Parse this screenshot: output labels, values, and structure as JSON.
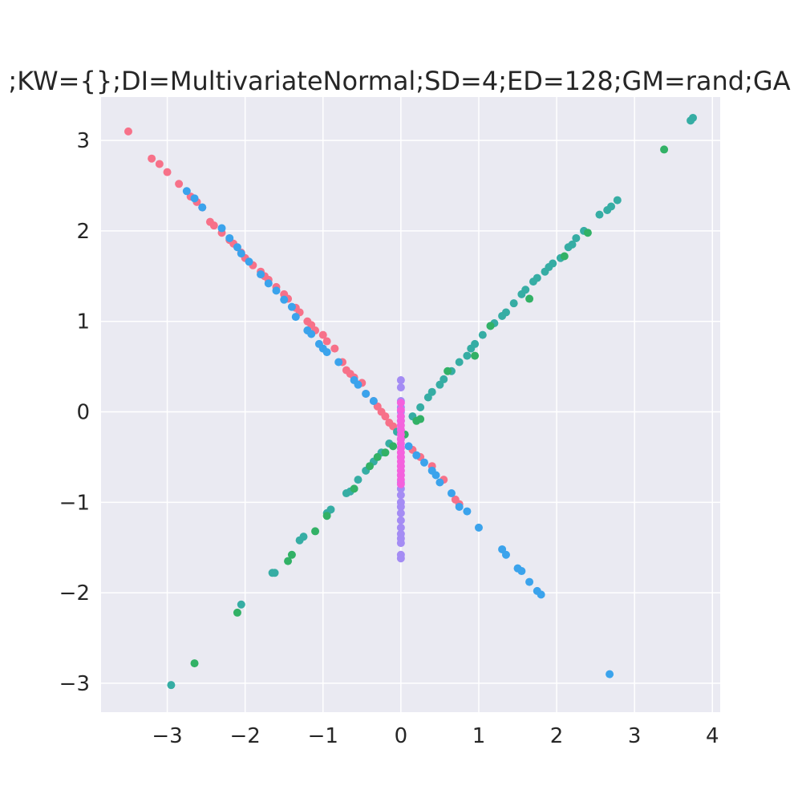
{
  "chart_data": {
    "type": "scatter",
    "title": ";KW={};DI=MultivariateNormal;SD=4;ED=128;GM=rand;GA",
    "xlabel": "",
    "ylabel": "",
    "xlim": [
      -3.85,
      4.1
    ],
    "ylim": [
      -3.32,
      3.48
    ],
    "grid": true,
    "background": "#eaeaf2",
    "x_ticks": [
      -3,
      -2,
      -1,
      0,
      1,
      2,
      3,
      4
    ],
    "y_ticks": [
      -3,
      -2,
      -1,
      0,
      1,
      2,
      3
    ],
    "x_tick_labels": [
      "−3",
      "−2",
      "−1",
      "0",
      "1",
      "2",
      "3",
      "4"
    ],
    "y_tick_labels": [
      "−3",
      "−2",
      "−1",
      "0",
      "1",
      "2",
      "3"
    ],
    "series": [
      {
        "color": "#f77189",
        "points": [
          [
            -3.5,
            3.1
          ],
          [
            -3.2,
            2.8
          ],
          [
            -3.1,
            2.74
          ],
          [
            -3.0,
            2.65
          ],
          [
            -2.85,
            2.52
          ],
          [
            -2.7,
            2.38
          ],
          [
            -2.62,
            2.32
          ],
          [
            -2.55,
            2.26
          ],
          [
            -2.45,
            2.1
          ],
          [
            -2.4,
            2.06
          ],
          [
            -2.3,
            1.98
          ],
          [
            -2.2,
            1.9
          ],
          [
            -2.15,
            1.86
          ],
          [
            -2.05,
            1.76
          ],
          [
            -2.0,
            1.7
          ],
          [
            -1.9,
            1.62
          ],
          [
            -1.8,
            1.55
          ],
          [
            -1.75,
            1.5
          ],
          [
            -1.7,
            1.46
          ],
          [
            -1.6,
            1.38
          ],
          [
            -1.5,
            1.3
          ],
          [
            -1.45,
            1.25
          ],
          [
            -1.35,
            1.15
          ],
          [
            -1.3,
            1.1
          ],
          [
            -1.2,
            1.0
          ],
          [
            -1.15,
            0.96
          ],
          [
            -1.1,
            0.9
          ],
          [
            -1.0,
            0.85
          ],
          [
            -0.95,
            0.78
          ],
          [
            -0.85,
            0.7
          ],
          [
            -0.75,
            0.55
          ],
          [
            -0.7,
            0.46
          ],
          [
            -0.65,
            0.42
          ],
          [
            -0.6,
            0.38
          ],
          [
            -0.5,
            0.32
          ],
          [
            -0.45,
            0.2
          ],
          [
            -0.35,
            0.12
          ],
          [
            -0.3,
            0.06
          ],
          [
            -0.25,
            0.0
          ],
          [
            -0.2,
            -0.05
          ],
          [
            -0.15,
            -0.12
          ],
          [
            -0.1,
            -0.16
          ],
          [
            0.15,
            -0.42
          ],
          [
            0.25,
            -0.5
          ],
          [
            0.4,
            -0.6
          ],
          [
            0.55,
            -0.75
          ],
          [
            0.7,
            -0.97
          ],
          [
            0.75,
            -1.02
          ]
        ]
      },
      {
        "color": "#36ada4",
        "points": [
          [
            3.75,
            3.25
          ],
          [
            3.72,
            3.22
          ],
          [
            2.78,
            2.34
          ],
          [
            2.7,
            2.27
          ],
          [
            2.65,
            2.23
          ],
          [
            2.55,
            2.18
          ],
          [
            2.35,
            2.0
          ],
          [
            2.25,
            1.92
          ],
          [
            2.2,
            1.85
          ],
          [
            2.15,
            1.82
          ],
          [
            2.05,
            1.7
          ],
          [
            1.95,
            1.64
          ],
          [
            1.9,
            1.6
          ],
          [
            1.85,
            1.55
          ],
          [
            1.75,
            1.48
          ],
          [
            1.7,
            1.44
          ],
          [
            1.6,
            1.35
          ],
          [
            1.55,
            1.3
          ],
          [
            1.45,
            1.2
          ],
          [
            1.35,
            1.1
          ],
          [
            1.3,
            1.06
          ],
          [
            1.2,
            0.98
          ],
          [
            1.15,
            0.95
          ],
          [
            1.05,
            0.85
          ],
          [
            0.95,
            0.75
          ],
          [
            0.9,
            0.7
          ],
          [
            0.85,
            0.62
          ],
          [
            0.75,
            0.55
          ],
          [
            0.65,
            0.45
          ],
          [
            0.55,
            0.36
          ],
          [
            0.5,
            0.3
          ],
          [
            0.4,
            0.22
          ],
          [
            0.35,
            0.16
          ],
          [
            0.25,
            0.05
          ],
          [
            0.15,
            -0.05
          ],
          [
            -0.05,
            -0.22
          ],
          [
            -0.15,
            -0.35
          ],
          [
            -0.25,
            -0.45
          ],
          [
            -0.35,
            -0.55
          ],
          [
            -0.45,
            -0.65
          ],
          [
            -0.55,
            -0.75
          ],
          [
            -0.65,
            -0.88
          ],
          [
            -0.7,
            -0.9
          ],
          [
            -0.9,
            -1.08
          ],
          [
            -0.95,
            -1.12
          ],
          [
            -1.25,
            -1.38
          ],
          [
            -1.3,
            -1.42
          ],
          [
            -1.65,
            -1.78
          ],
          [
            -1.62,
            -1.78
          ],
          [
            -2.05,
            -2.13
          ],
          [
            -2.95,
            -3.02
          ]
        ]
      },
      {
        "color": "#32b166",
        "points": [
          [
            3.38,
            2.9
          ],
          [
            2.4,
            1.98
          ],
          [
            2.1,
            1.72
          ],
          [
            1.65,
            1.25
          ],
          [
            1.15,
            0.95
          ],
          [
            0.95,
            0.62
          ],
          [
            0.6,
            0.45
          ],
          [
            0.2,
            -0.1
          ],
          [
            0.25,
            -0.08
          ],
          [
            0.05,
            -0.25
          ],
          [
            -0.1,
            -0.38
          ],
          [
            -0.2,
            -0.45
          ],
          [
            -0.3,
            -0.5
          ],
          [
            -0.4,
            -0.6
          ],
          [
            -0.6,
            -0.85
          ],
          [
            -0.95,
            -1.15
          ],
          [
            -1.1,
            -1.32
          ],
          [
            -1.4,
            -1.58
          ],
          [
            -1.45,
            -1.65
          ],
          [
            -2.1,
            -2.22
          ],
          [
            -2.65,
            -2.78
          ]
        ]
      },
      {
        "color": "#3ba3ec",
        "points": [
          [
            -2.75,
            2.44
          ],
          [
            -2.65,
            2.36
          ],
          [
            -2.55,
            2.26
          ],
          [
            -2.3,
            2.03
          ],
          [
            -2.2,
            1.92
          ],
          [
            -2.1,
            1.82
          ],
          [
            -2.05,
            1.75
          ],
          [
            -1.95,
            1.66
          ],
          [
            -1.8,
            1.52
          ],
          [
            -1.7,
            1.42
          ],
          [
            -1.6,
            1.34
          ],
          [
            -1.5,
            1.24
          ],
          [
            -1.4,
            1.16
          ],
          [
            -1.35,
            1.05
          ],
          [
            -1.2,
            0.9
          ],
          [
            -1.15,
            0.86
          ],
          [
            -1.05,
            0.75
          ],
          [
            -1.0,
            0.7
          ],
          [
            -0.95,
            0.66
          ],
          [
            -0.8,
            0.55
          ],
          [
            -0.6,
            0.35
          ],
          [
            -0.55,
            0.3
          ],
          [
            -0.45,
            0.2
          ],
          [
            -0.35,
            0.12
          ],
          [
            0.1,
            -0.38
          ],
          [
            0.2,
            -0.48
          ],
          [
            0.3,
            -0.56
          ],
          [
            0.4,
            -0.65
          ],
          [
            0.45,
            -0.7
          ],
          [
            0.5,
            -0.78
          ],
          [
            0.65,
            -0.9
          ],
          [
            0.75,
            -1.05
          ],
          [
            0.85,
            -1.1
          ],
          [
            1.0,
            -1.28
          ],
          [
            1.3,
            -1.52
          ],
          [
            1.35,
            -1.58
          ],
          [
            1.5,
            -1.73
          ],
          [
            1.55,
            -1.76
          ],
          [
            1.65,
            -1.88
          ],
          [
            1.75,
            -1.98
          ],
          [
            1.8,
            -2.02
          ],
          [
            2.68,
            -2.9
          ]
        ]
      },
      {
        "color": "#a48cf4",
        "points": [
          [
            0,
            0.35
          ],
          [
            0,
            0.27
          ],
          [
            0,
            0.12
          ],
          [
            0,
            0.05
          ],
          [
            0,
            0.0
          ],
          [
            0,
            -0.05
          ],
          [
            0,
            -0.1
          ],
          [
            0,
            -0.2
          ],
          [
            0,
            -0.3
          ],
          [
            0,
            -0.4
          ],
          [
            0,
            -0.5
          ],
          [
            0,
            -0.6
          ],
          [
            0,
            -0.7
          ],
          [
            0,
            -0.78
          ],
          [
            0,
            -0.85
          ],
          [
            0,
            -0.92
          ],
          [
            0,
            -1.0
          ],
          [
            0,
            -1.05
          ],
          [
            0,
            -1.12
          ],
          [
            0,
            -1.2
          ],
          [
            0,
            -1.28
          ],
          [
            0,
            -1.35
          ],
          [
            0,
            -1.4
          ],
          [
            0,
            -1.45
          ],
          [
            0,
            -1.58
          ],
          [
            0,
            -1.62
          ]
        ]
      },
      {
        "color": "#f461dd",
        "points": [
          [
            0,
            0.1
          ],
          [
            0,
            0.02
          ],
          [
            0,
            -0.05
          ],
          [
            0,
            -0.1
          ],
          [
            0,
            -0.15
          ],
          [
            0,
            -0.2
          ],
          [
            0,
            -0.25
          ],
          [
            0,
            -0.3
          ],
          [
            0,
            -0.35
          ],
          [
            0,
            -0.4
          ],
          [
            0,
            -0.45
          ],
          [
            0,
            -0.5
          ],
          [
            0,
            -0.55
          ],
          [
            0,
            -0.6
          ],
          [
            0,
            -0.65
          ],
          [
            0,
            -0.7
          ],
          [
            0,
            -0.75
          ],
          [
            0,
            -0.8
          ]
        ]
      }
    ]
  }
}
